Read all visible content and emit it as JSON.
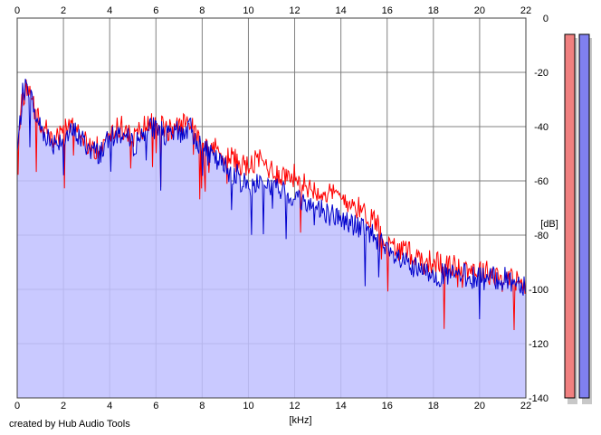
{
  "credit": "created by Hub Audio Tools",
  "chart_data": {
    "type": "line",
    "xlabel": "[kHz]",
    "ylabel": "[dB]",
    "xlim": [
      0,
      22
    ],
    "ylim": [
      -140,
      0
    ],
    "x_ticks": [
      "0",
      "2",
      "4",
      "6",
      "8",
      "10",
      "12",
      "14",
      "16",
      "18",
      "20",
      "22"
    ],
    "y_ticks": [
      "0",
      "-20",
      "-40",
      "-60",
      "-80",
      "-100",
      "-120",
      "-140"
    ],
    "grid": true,
    "area_fill_series": "blue",
    "colors": {
      "red": "#ff0000",
      "blue": "#0000cc",
      "fill": "#c0c0ff",
      "meter_red": "#f08080",
      "meter_blue": "#8080f0"
    },
    "series": [
      {
        "color": "red",
        "x": [
          0,
          0.25,
          0.5,
          0.75,
          1,
          1.5,
          2,
          2.5,
          3,
          3.5,
          4,
          4.5,
          5,
          5.5,
          6,
          6.5,
          7,
          7.5,
          8,
          8.5,
          9,
          9.5,
          10,
          10.5,
          11,
          11.5,
          12,
          12.5,
          13,
          13.5,
          14,
          14.5,
          15,
          15.5,
          16,
          16.5,
          17,
          17.5,
          18,
          18.5,
          19,
          19.5,
          20,
          20.5,
          21,
          21.5,
          22
        ],
        "y": [
          -45,
          -28,
          -26,
          -33,
          -38,
          -44,
          -41,
          -40,
          -46,
          -48,
          -42,
          -40,
          -45,
          -40,
          -38,
          -42,
          -40,
          -38,
          -45,
          -48,
          -50,
          -53,
          -55,
          -52,
          -56,
          -58,
          -58,
          -62,
          -63,
          -65,
          -66,
          -68,
          -72,
          -74,
          -84,
          -85,
          -87,
          -89,
          -90,
          -91,
          -92,
          -92,
          -93,
          -94,
          -95,
          -96,
          -99
        ]
      },
      {
        "color": "blue",
        "x": [
          0,
          0.25,
          0.5,
          0.75,
          1,
          1.5,
          2,
          2.5,
          3,
          3.5,
          4,
          4.5,
          5,
          5.5,
          6,
          6.5,
          7,
          7.5,
          8,
          8.5,
          9,
          9.5,
          10,
          10.5,
          11,
          11.5,
          12,
          12.5,
          13,
          13.5,
          14,
          14.5,
          15,
          15.5,
          16,
          16.5,
          17,
          17.5,
          18,
          18.5,
          19,
          19.5,
          20,
          20.5,
          21,
          21.5,
          22
        ],
        "y": [
          -50,
          -27,
          -25,
          -35,
          -40,
          -46,
          -44,
          -42,
          -47,
          -50,
          -45,
          -42,
          -47,
          -42,
          -40,
          -44,
          -42,
          -41,
          -48,
          -52,
          -55,
          -58,
          -62,
          -60,
          -62,
          -64,
          -66,
          -68,
          -70,
          -72,
          -74,
          -76,
          -78,
          -80,
          -87,
          -89,
          -92,
          -94,
          -94,
          -95,
          -95,
          -95,
          -96,
          -96,
          -96,
          -97,
          -98
        ]
      }
    ],
    "meters": {
      "left": "red",
      "right": "blue"
    }
  }
}
